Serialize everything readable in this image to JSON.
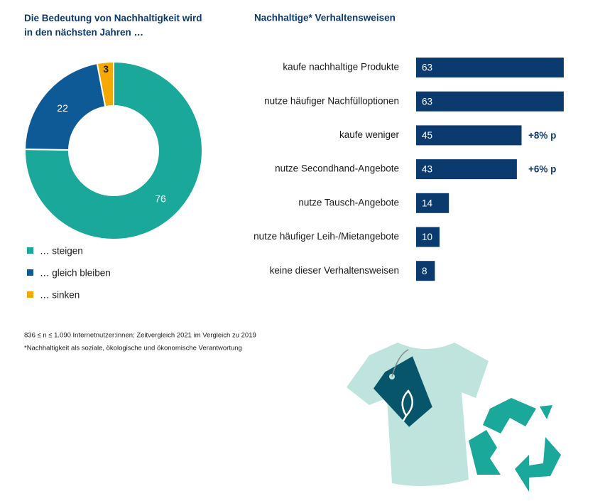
{
  "chart_data": [
    {
      "type": "donut",
      "title": "Die Bedeutung von Nachhaltigkeit wird in den nächsten Jahren …",
      "categories": [
        "… steigen",
        "… gleich bleiben",
        "… sinken"
      ],
      "values": [
        76,
        22,
        3
      ],
      "colors": [
        "#1aa89a",
        "#0e5a96",
        "#f5a800"
      ],
      "label_colors": [
        "#ffffff",
        "#ffffff",
        "#1a1a1a"
      ]
    },
    {
      "type": "hbar",
      "title": "Nachhaltige* Verhaltensweisen",
      "categories": [
        "kaufe nachhaltige Produkte",
        "nutze häufiger Nachfülloptionen",
        "kaufe weniger",
        "nutze Secondhand-Angebote",
        "nutze Tausch-Angebote",
        "nutze häufiger Leih-/Mietangebote",
        "keine dieser Verhaltensweisen"
      ],
      "values": [
        63,
        63,
        45,
        43,
        14,
        10,
        8
      ],
      "color": "#0b3a6e",
      "changes": [
        null,
        null,
        "+8% p",
        "+6% p",
        null,
        null,
        null
      ]
    }
  ],
  "notes": [
    "836 ≤ n ≤ 1.090 Internetnutzer:innen; Zeitvergleich 2021 im Vergleich zu 2019",
    "*Nachhaltigkeit als soziale, ökologische und ökonomische Verantwortung"
  ]
}
